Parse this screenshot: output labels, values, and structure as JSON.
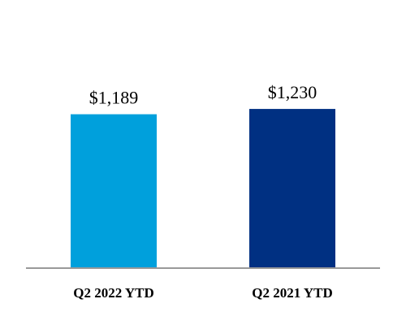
{
  "chart_data": {
    "type": "bar",
    "categories": [
      "Q2 2022 YTD",
      "Q2 2021 YTD"
    ],
    "values": [
      1189,
      1230
    ],
    "value_labels": [
      "$1,189",
      "$1,230"
    ],
    "colors": [
      "#00A0DC",
      "#003082"
    ],
    "axis_color": "#999999",
    "ylim": [
      0,
      1400
    ],
    "title": "",
    "xlabel": "",
    "ylabel": "",
    "grid": false,
    "legend": "none"
  }
}
